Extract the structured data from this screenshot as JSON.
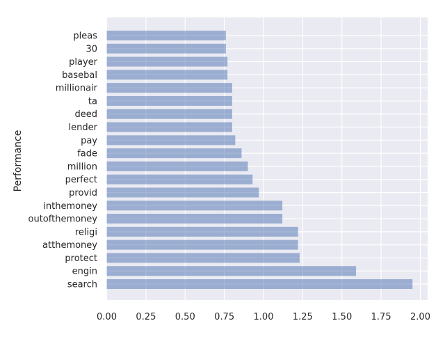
{
  "chart_data": {
    "type": "bar",
    "orientation": "horizontal",
    "ylabel": "Performance",
    "xlabel": "",
    "title": "",
    "xlim": [
      0,
      2.05
    ],
    "xticks": [
      "0.00",
      "0.25",
      "0.50",
      "0.75",
      "1.00",
      "1.25",
      "1.50",
      "1.75",
      "2.00"
    ],
    "grid": true,
    "bar_color": "#4c72b0",
    "background_color": "#eaeaf2",
    "categories": [
      "search",
      "engin",
      "protect",
      "atthemoney",
      "religi",
      "outofthemoney",
      "inthemoney",
      "provid",
      "perfect",
      "million",
      "fade",
      "pay",
      "lender",
      "deed",
      "ta",
      "millionair",
      "basebal",
      "player",
      "30",
      "pleas"
    ],
    "values": [
      1.95,
      1.59,
      1.23,
      1.22,
      1.22,
      1.12,
      1.12,
      0.97,
      0.93,
      0.9,
      0.86,
      0.82,
      0.8,
      0.8,
      0.8,
      0.8,
      0.77,
      0.77,
      0.76,
      0.76
    ]
  }
}
